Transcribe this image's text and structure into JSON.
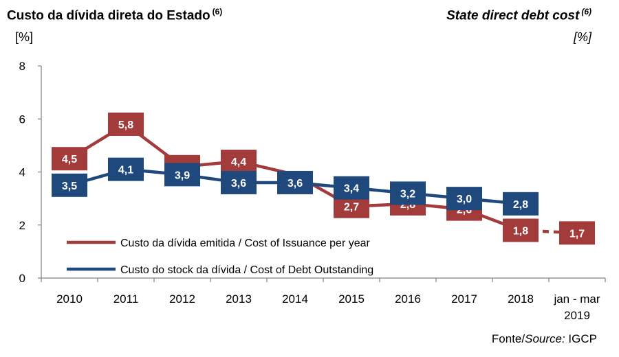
{
  "header": {
    "title_pt": "Custo da dívida direta do Estado",
    "title_pt_note": "(6)",
    "title_en": "State direct debt cost",
    "title_en_note": "(6)",
    "unit_pt": "[%]",
    "unit_en": "[%]"
  },
  "source": {
    "prefix": "Fonte/",
    "italic": "Source:",
    "name": " IGCP"
  },
  "chart_data": {
    "type": "line",
    "categories": [
      "2010",
      "2011",
      "2012",
      "2013",
      "2014",
      "2015",
      "2016",
      "2017",
      "2018",
      "jan - mar 2019"
    ],
    "category_lines": [
      [
        "2010"
      ],
      [
        "2011"
      ],
      [
        "2012"
      ],
      [
        "2013"
      ],
      [
        "2014"
      ],
      [
        "2015"
      ],
      [
        "2016"
      ],
      [
        "2017"
      ],
      [
        "2018"
      ],
      [
        "jan - mar",
        "2019"
      ]
    ],
    "ylim": [
      0,
      8
    ],
    "yticks": [
      0,
      2,
      4,
      6,
      8
    ],
    "grid": false,
    "legend_position": "bottom-left",
    "series": [
      {
        "name": "Custo da dívida emitida / Cost of Issuance per year",
        "color": "#a33b3b",
        "values": [
          4.5,
          5.8,
          4.2,
          4.4,
          3.9,
          2.7,
          2.8,
          2.6,
          1.8,
          1.7
        ],
        "labels": [
          "4,5",
          "5,8",
          "4,2",
          "4,4",
          "",
          "2,7",
          "2,8",
          "2,6",
          "1,8",
          "1,7"
        ],
        "dashed_last_segment": true
      },
      {
        "name": "Custo do stock da dívida / Cost of Debt Outstanding",
        "color": "#1f497d",
        "values": [
          3.5,
          4.1,
          3.9,
          3.6,
          3.6,
          3.4,
          3.2,
          3.0,
          2.8,
          null
        ],
        "labels": [
          "3,5",
          "4,1",
          "3,9",
          "3,6",
          "3,6",
          "3,4",
          "3,2",
          "3,0",
          "2,8",
          ""
        ],
        "dashed_last_segment": false
      }
    ]
  }
}
